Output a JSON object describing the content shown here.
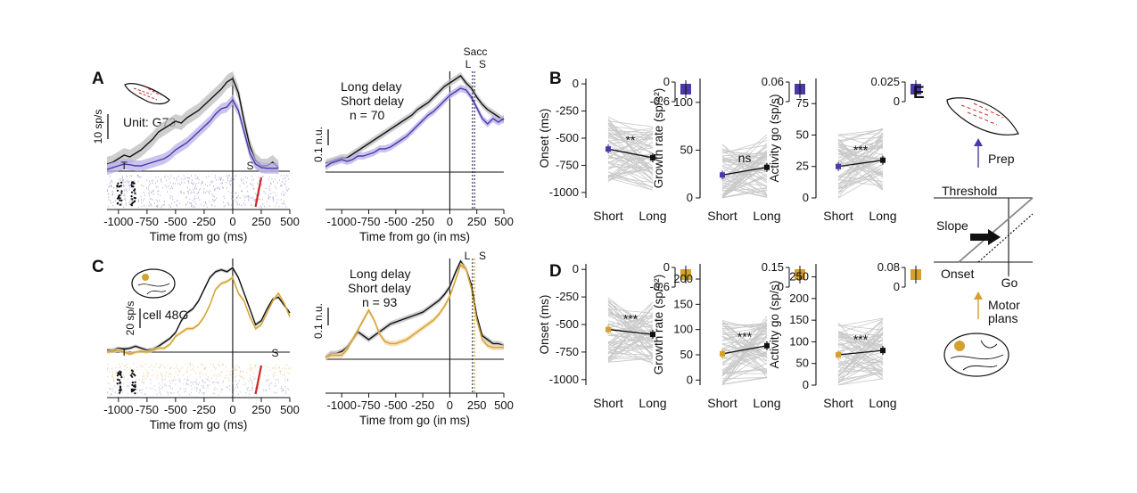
{
  "colors": {
    "purple": "#4a3aa8",
    "gold": "#d4a030",
    "black": "#111111",
    "grey": "#888888",
    "red": "#cc2a2a"
  },
  "panels": {
    "A": {
      "label": "A",
      "unit_label": "Unit: G73",
      "scale_label": "10 sp/s",
      "xlabel": "Time from go (ms)",
      "raster_marks": {
        "t": "T",
        "s": "S"
      }
    },
    "A2": {
      "legend": [
        "Long delay",
        "Short delay",
        "n = 70"
      ],
      "scale_label": "0.1 n.u.",
      "xlabel": "Time from go (in ms)",
      "sacc_label": "Sacc",
      "l_label": "L",
      "s_label": "S"
    },
    "B": {
      "label": "B"
    },
    "C": {
      "label": "C",
      "unit_label": "cell 48G",
      "scale_label": "20 sp/s",
      "xlabel": "Time from go (ms)",
      "raster_marks": {
        "t": "T",
        "s": "S"
      }
    },
    "C2": {
      "legend": [
        "Long delay",
        "Short delay",
        "n = 93"
      ],
      "scale_label": "0.1 n.u.",
      "xlabel": "Time from go (in ms)",
      "l_label": "L",
      "s_label": "S"
    },
    "D": {
      "label": "D"
    },
    "E": {
      "label": "E",
      "prep": "Prep",
      "threshold": "Threshold",
      "slope": "Slope",
      "onset": "Onset",
      "go": "Go",
      "motor1": "Motor",
      "motor2": "plans"
    }
  },
  "chart_data": [
    {
      "id": "A-psth",
      "type": "line",
      "xlabel": "Time from go (ms)",
      "xlim": [
        -1100,
        500
      ],
      "xticks": [
        "-1000",
        "-750",
        "-500",
        "-250",
        "0",
        "250",
        "500"
      ],
      "series": [
        {
          "name": "Long delay",
          "x": [
            -1100,
            -1050,
            -1000,
            -950,
            -900,
            -850,
            -800,
            -750,
            -700,
            -650,
            -600,
            -550,
            -500,
            -450,
            -400,
            -350,
            -300,
            -250,
            -200,
            -150,
            -100,
            -50,
            0,
            50,
            100,
            150,
            200,
            250,
            300,
            350,
            400
          ],
          "y": [
            2,
            2.5,
            3.5,
            4.5,
            4,
            5,
            6,
            7.5,
            9,
            11,
            12,
            13,
            14,
            13.5,
            15,
            16,
            17,
            18.5,
            20,
            21.5,
            23,
            25,
            26,
            22,
            14,
            7,
            3,
            1.5,
            1.5,
            2.5,
            1
          ]
        },
        {
          "name": "Short delay",
          "x": [
            -1100,
            -1050,
            -1000,
            -950,
            -900,
            -850,
            -800,
            -750,
            -700,
            -650,
            -600,
            -550,
            -500,
            -450,
            -400,
            -350,
            -300,
            -250,
            -200,
            -150,
            -100,
            -50,
            0,
            50,
            100,
            150,
            200,
            250,
            300,
            350,
            400
          ],
          "y": [
            0.5,
            1,
            1.5,
            2,
            1.8,
            1.5,
            1.5,
            2,
            2.5,
            3,
            3.5,
            4.5,
            6,
            7,
            8,
            9.5,
            11,
            12.5,
            14,
            16,
            17.5,
            18,
            20,
            17,
            11,
            5,
            2,
            1,
            0.8,
            0.8,
            0.8
          ]
        }
      ]
    },
    {
      "id": "A-norm",
      "type": "line",
      "xlabel": "Time from go (in ms)",
      "xlim": [
        -1150,
        500
      ],
      "xticks": [
        "-1000",
        "-750",
        "-500",
        "-250",
        "0",
        "250",
        "500"
      ],
      "series": [
        {
          "name": "Long delay",
          "x": [
            -1150,
            -1100,
            -1050,
            -1000,
            -950,
            -900,
            -850,
            -800,
            -750,
            -700,
            -650,
            -600,
            -550,
            -500,
            -450,
            -400,
            -350,
            -300,
            -250,
            -200,
            -150,
            -100,
            -50,
            0,
            50,
            100,
            150,
            200,
            250,
            300,
            350,
            400,
            450,
            500
          ],
          "y": [
            0.05,
            0.06,
            0.07,
            0.08,
            0.08,
            0.1,
            0.12,
            0.14,
            0.16,
            0.18,
            0.2,
            0.22,
            0.24,
            0.26,
            0.28,
            0.3,
            0.32,
            0.35,
            0.37,
            0.39,
            0.42,
            0.45,
            0.48,
            0.5,
            0.52,
            0.54,
            0.5,
            0.47,
            0.42,
            0.38,
            0.35,
            0.33,
            0.31,
            0.29
          ]
        },
        {
          "name": "Short delay",
          "x": [
            -1150,
            -1100,
            -1050,
            -1000,
            -950,
            -900,
            -850,
            -800,
            -750,
            -700,
            -650,
            -600,
            -550,
            -500,
            -450,
            -400,
            -350,
            -300,
            -250,
            -200,
            -150,
            -100,
            -50,
            0,
            50,
            100,
            150,
            200,
            250,
            300,
            350,
            400,
            450,
            500
          ],
          "y": [
            0.03,
            0.05,
            0.06,
            0.07,
            0.06,
            0.07,
            0.09,
            0.09,
            0.1,
            0.11,
            0.13,
            0.13,
            0.14,
            0.16,
            0.18,
            0.2,
            0.23,
            0.26,
            0.29,
            0.32,
            0.34,
            0.37,
            0.4,
            0.43,
            0.45,
            0.47,
            0.46,
            0.42,
            0.36,
            0.3,
            0.27,
            0.3,
            0.28,
            0.3
          ]
        }
      ]
    },
    {
      "id": "C-psth",
      "type": "line",
      "xlabel": "Time from go (ms)",
      "xlim": [
        -1100,
        500
      ],
      "xticks": [
        "-1000",
        "-750",
        "-500",
        "-250",
        "0",
        "250",
        "500"
      ],
      "series": [
        {
          "name": "Long delay",
          "x": [
            -1100,
            -1050,
            -1000,
            -950,
            -900,
            -850,
            -800,
            -750,
            -700,
            -650,
            -600,
            -550,
            -500,
            -450,
            -400,
            -350,
            -300,
            -250,
            -200,
            -150,
            -100,
            -50,
            0,
            50,
            100,
            150,
            200,
            250,
            300,
            350,
            400,
            450,
            500
          ],
          "y": [
            1,
            1,
            2,
            1.5,
            2,
            3,
            2,
            1,
            1.5,
            3,
            5,
            7,
            10,
            16,
            20,
            22,
            26,
            32,
            38,
            41,
            42,
            41,
            43,
            38,
            30,
            22,
            14,
            16,
            22,
            27,
            28,
            24,
            20
          ]
        },
        {
          "name": "Short delay",
          "x": [
            -1100,
            -1050,
            -1000,
            -950,
            -900,
            -850,
            -800,
            -750,
            -700,
            -650,
            -600,
            -550,
            -500,
            -450,
            -400,
            -350,
            -300,
            -250,
            -200,
            -150,
            -100,
            -50,
            0,
            50,
            100,
            150,
            200,
            250,
            300,
            350,
            400,
            450,
            500
          ],
          "y": [
            0,
            0.5,
            1,
            0,
            -1,
            0,
            0.5,
            0,
            1,
            2,
            2,
            4,
            8,
            10,
            12,
            12,
            14,
            18,
            24,
            32,
            35,
            36,
            38,
            30,
            26,
            18,
            12,
            14,
            20,
            26,
            30,
            25,
            18
          ]
        }
      ]
    },
    {
      "id": "C-norm",
      "type": "line",
      "xlabel": "Time from go (in ms)",
      "xlim": [
        -1150,
        500
      ],
      "xticks": [
        "-1000",
        "-750",
        "-500",
        "-250",
        "0",
        "250",
        "500"
      ],
      "series": [
        {
          "name": "Long delay",
          "x": [
            -1150,
            -1100,
            -1050,
            -1000,
            -950,
            -900,
            -850,
            -800,
            -750,
            -700,
            -650,
            -600,
            -550,
            -500,
            -450,
            -400,
            -350,
            -300,
            -250,
            -200,
            -150,
            -100,
            -50,
            0,
            50,
            100,
            150,
            200,
            250,
            300,
            350,
            400,
            450,
            500
          ],
          "y": [
            0.01,
            0.03,
            0.03,
            0.04,
            0.06,
            0.1,
            0.14,
            0.12,
            0.1,
            0.12,
            0.14,
            0.16,
            0.18,
            0.19,
            0.2,
            0.21,
            0.22,
            0.23,
            0.24,
            0.26,
            0.28,
            0.3,
            0.33,
            0.37,
            0.44,
            0.5,
            0.46,
            0.38,
            0.22,
            0.12,
            0.1,
            0.08,
            0.08,
            0.07
          ]
        },
        {
          "name": "Short delay",
          "x": [
            -1150,
            -1100,
            -1050,
            -1000,
            -950,
            -900,
            -850,
            -800,
            -750,
            -700,
            -650,
            -600,
            -550,
            -500,
            -450,
            -400,
            -350,
            -300,
            -250,
            -200,
            -150,
            -100,
            -50,
            0,
            50,
            100,
            150,
            200,
            250,
            300,
            350,
            400,
            450,
            500
          ],
          "y": [
            0.01,
            0.02,
            0.02,
            0.02,
            0.05,
            0.1,
            0.15,
            0.2,
            0.25,
            0.2,
            0.13,
            0.09,
            0.08,
            0.08,
            0.09,
            0.1,
            0.12,
            0.14,
            0.16,
            0.18,
            0.2,
            0.23,
            0.27,
            0.32,
            0.4,
            0.48,
            0.46,
            0.36,
            0.2,
            0.1,
            0.07,
            0.06,
            0.06,
            0.06
          ]
        }
      ]
    },
    {
      "id": "B-onset",
      "type": "scatter",
      "ylabel": "Onset (ms)",
      "ylim": [
        -1050,
        50
      ],
      "yticks": [
        0,
        -250,
        -500,
        -750,
        -1000
      ],
      "categories": [
        "Short",
        "Long"
      ],
      "mean": [
        -600,
        -680
      ],
      "significance": "**",
      "inset_ticks": [
        "0",
        "-0.6"
      ]
    },
    {
      "id": "B-growth",
      "type": "scatter",
      "ylabel": "Growth rate (sp/s²)",
      "ylim": [
        0,
        125
      ],
      "yticks": [
        100,
        50,
        0
      ],
      "categories": [
        "Short",
        "Long"
      ],
      "mean": [
        24,
        32
      ],
      "significance": "ns",
      "inset_ticks": [
        "0.06",
        "0"
      ]
    },
    {
      "id": "B-activity",
      "type": "scatter",
      "ylabel": "Activity go (sp/s)",
      "ylim": [
        0,
        95
      ],
      "yticks": [
        75,
        50,
        25,
        0
      ],
      "categories": [
        "Short",
        "Long"
      ],
      "mean": [
        25,
        30
      ],
      "significance": "***",
      "inset_ticks": [
        "0.025",
        "0"
      ]
    },
    {
      "id": "D-onset",
      "type": "scatter",
      "ylabel": "Onset (ms)",
      "ylim": [
        -1050,
        50
      ],
      "yticks": [
        0,
        -250,
        -500,
        -750,
        -1000
      ],
      "categories": [
        "Short",
        "Long"
      ],
      "mean": [
        -545,
        -590
      ],
      "significance": "***",
      "inset_ticks": [
        "0",
        "-0.6"
      ]
    },
    {
      "id": "D-growth",
      "type": "scatter",
      "ylabel": "Growth rate (sp/s²)",
      "ylim": [
        -10,
        230
      ],
      "yticks": [
        200,
        150,
        100,
        50,
        0
      ],
      "categories": [
        "Short",
        "Long"
      ],
      "mean": [
        52,
        68
      ],
      "significance": "***",
      "inset_ticks": [
        "0.15",
        "0"
      ]
    },
    {
      "id": "D-activity",
      "type": "scatter",
      "ylabel": "Activity go (sp/s)",
      "ylim": [
        0,
        280
      ],
      "yticks": [
        250,
        200,
        150,
        100,
        50,
        0
      ],
      "categories": [
        "Short",
        "Long"
      ],
      "mean": [
        70,
        80
      ],
      "significance": "***",
      "inset_ticks": [
        "0.08",
        "0"
      ]
    }
  ]
}
